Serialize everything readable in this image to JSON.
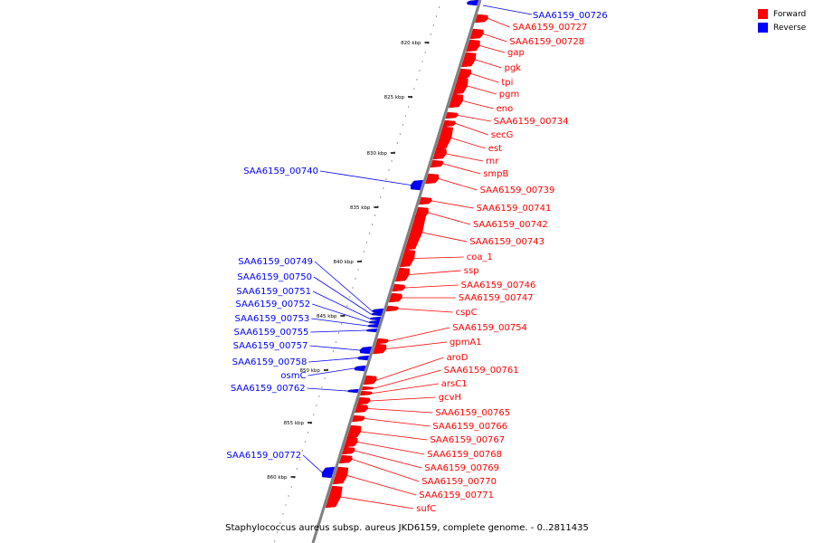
{
  "caption": "Staphylococcus aureus subsp. aureus JKD6159, complete genome. - 0..2811435",
  "legend": [
    {
      "label": "Forward",
      "color": "#ff0000"
    },
    {
      "label": "Reverse",
      "color": "#0000ff"
    }
  ],
  "colors": {
    "forward": "#ff0000",
    "reverse": "#0000ff",
    "backbone": "#808080",
    "tick": "#000000"
  },
  "ticks": [
    "820 kbp",
    "825 kbp",
    "830 kbp",
    "835 kbp",
    "840 kbp",
    "845 kbp",
    "850 kbp",
    "855 kbp",
    "860 kbp"
  ],
  "forward_genes": [
    "SAA6159_00727",
    "SAA6159_00728",
    "gap",
    "pgk",
    "tpi",
    "pgm",
    "eno",
    "SAA6159_00734",
    "secG",
    "est",
    "rnr",
    "smpB",
    "SAA6159_00739",
    "SAA6159_00741",
    "SAA6159_00742",
    "SAA6159_00743",
    "coa_1",
    "ssp",
    "SAA6159_00746",
    "SAA6159_00747",
    "cspC",
    "SAA6159_00754",
    "gpmA1",
    "aroD",
    "SAA6159_00761",
    "arsC1",
    "gcvH",
    "SAA6159_00765",
    "SAA6159_00766",
    "SAA6159_00767",
    "SAA6159_00768",
    "SAA6159_00769",
    "SAA6159_00770",
    "SAA6159_00771",
    "sufC"
  ],
  "reverse_genes": [
    "SAA6159_00726",
    "SAA6159_00740",
    "SAA6159_00749",
    "SAA6159_00750",
    "SAA6159_00751",
    "SAA6159_00752",
    "SAA6159_00753",
    "SAA6159_00755",
    "SAA6159_00757",
    "SAA6159_00758",
    "osmC",
    "SAA6159_00762",
    "SAA6159_00772"
  ]
}
